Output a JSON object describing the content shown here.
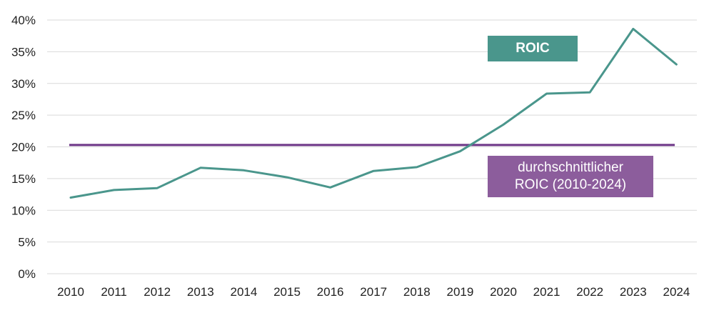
{
  "colors": {
    "roic": "#4a968c",
    "average": "#6c3586",
    "average_label_bg": "#8c5d9c",
    "grid": "#d9d9d9"
  },
  "chart_data": {
    "type": "line",
    "title": "",
    "xlabel": "",
    "ylabel": "",
    "categories": [
      "2010",
      "2011",
      "2012",
      "2013",
      "2014",
      "2015",
      "2016",
      "2017",
      "2018",
      "2019",
      "2020",
      "2021",
      "2022",
      "2023",
      "2024"
    ],
    "y_ticks": [
      "0%",
      "5%",
      "10%",
      "15%",
      "20%",
      "25%",
      "30%",
      "35%",
      "40%"
    ],
    "ylim": [
      0,
      40
    ],
    "grid": true,
    "series": [
      {
        "name": "ROIC",
        "values": [
          12.0,
          13.2,
          13.5,
          16.7,
          16.3,
          15.2,
          13.6,
          16.2,
          16.8,
          19.3,
          23.5,
          28.4,
          28.6,
          38.6,
          33.0
        ]
      },
      {
        "name": "durchschnittlicher ROIC (2010-2024)",
        "values": [
          20.3,
          20.3,
          20.3,
          20.3,
          20.3,
          20.3,
          20.3,
          20.3,
          20.3,
          20.3,
          20.3,
          20.3,
          20.3,
          20.3,
          20.3
        ]
      }
    ],
    "legend": {
      "roic_label": "ROIC",
      "avg_label_line1": "durchschnittlicher",
      "avg_label_line2": "ROIC (2010-2024)"
    }
  }
}
